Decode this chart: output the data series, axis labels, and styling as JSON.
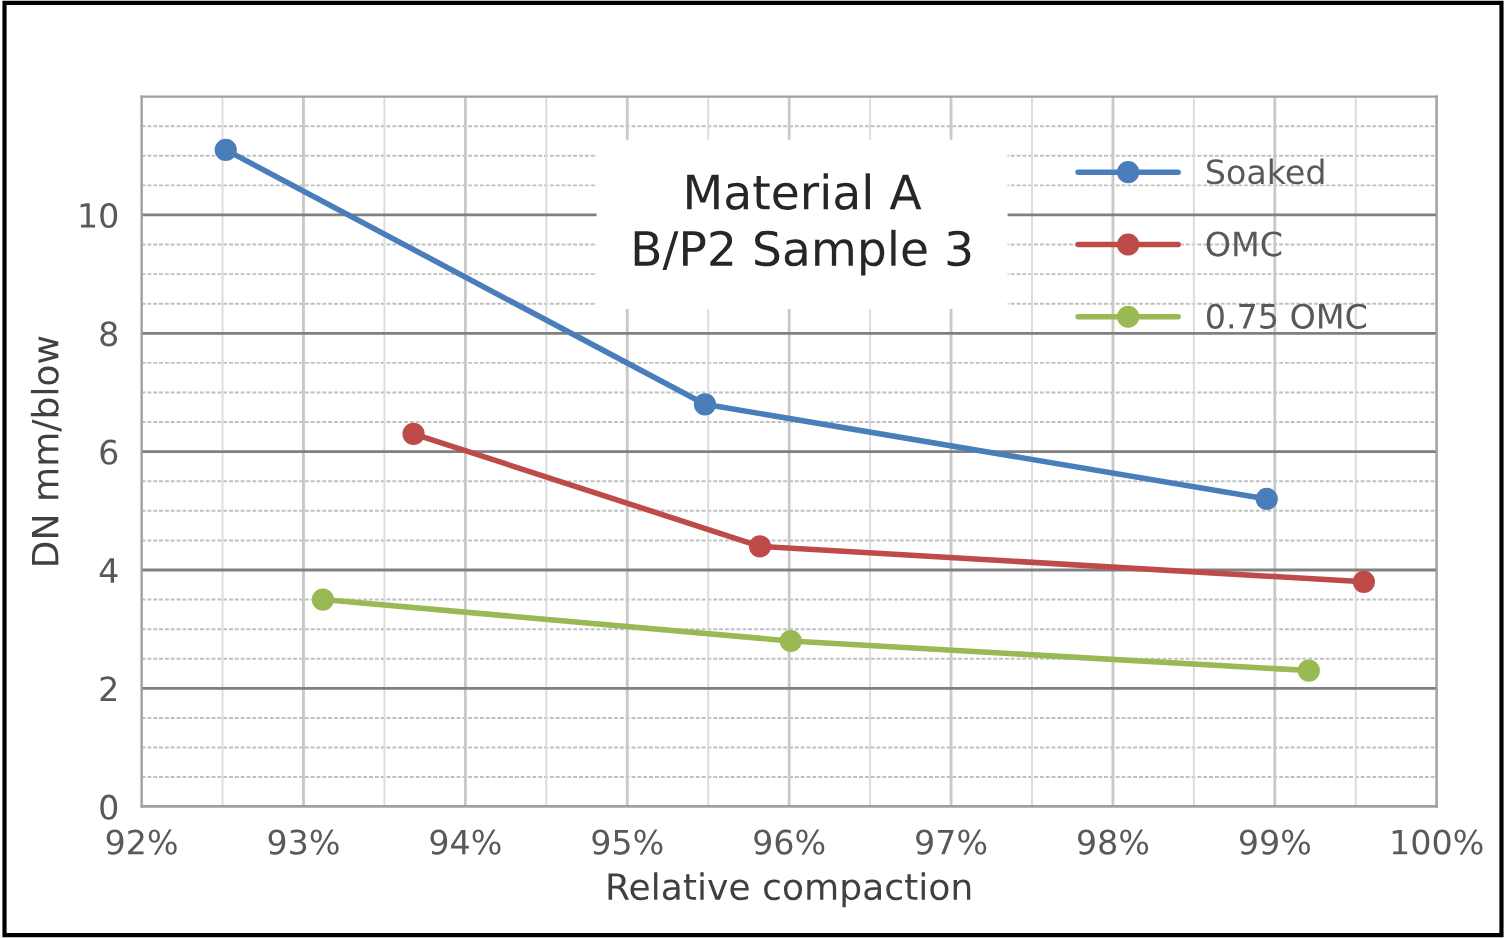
{
  "chart_data": {
    "type": "line",
    "title": "Material A\nB/P2 Sample 3",
    "xlabel": "Relative compaction",
    "ylabel": "DN mm/blow",
    "xlim": [
      92,
      100
    ],
    "xticks": [
      {
        "value": 92,
        "label": "92%"
      },
      {
        "value": 93,
        "label": "93%"
      },
      {
        "value": 94,
        "label": "94%"
      },
      {
        "value": 95,
        "label": "95%"
      },
      {
        "value": 96,
        "label": "96%"
      },
      {
        "value": 97,
        "label": "97%"
      },
      {
        "value": 98,
        "label": "98%"
      },
      {
        "value": 99,
        "label": "99%"
      },
      {
        "value": 100,
        "label": "100%"
      }
    ],
    "ylim": [
      0,
      12
    ],
    "yticks": [
      0,
      2,
      4,
      6,
      8,
      10
    ],
    "grid": true,
    "legend": "top right",
    "marker": "circle",
    "line_style": "solid",
    "series": [
      {
        "name": "Soaked",
        "color": "#4a7ebb",
        "x": [
          92.52,
          95.48,
          98.95
        ],
        "values": [
          11.1,
          6.8,
          5.2
        ]
      },
      {
        "name": "OMC",
        "color": "#be4b48",
        "x": [
          93.68,
          95.82,
          99.55
        ],
        "values": [
          6.3,
          4.4,
          3.8
        ]
      },
      {
        "name": "0.75 OMC",
        "color": "#98b954",
        "x": [
          93.12,
          96.01,
          99.21
        ],
        "values": [
          3.5,
          2.8,
          2.3
        ]
      }
    ]
  }
}
